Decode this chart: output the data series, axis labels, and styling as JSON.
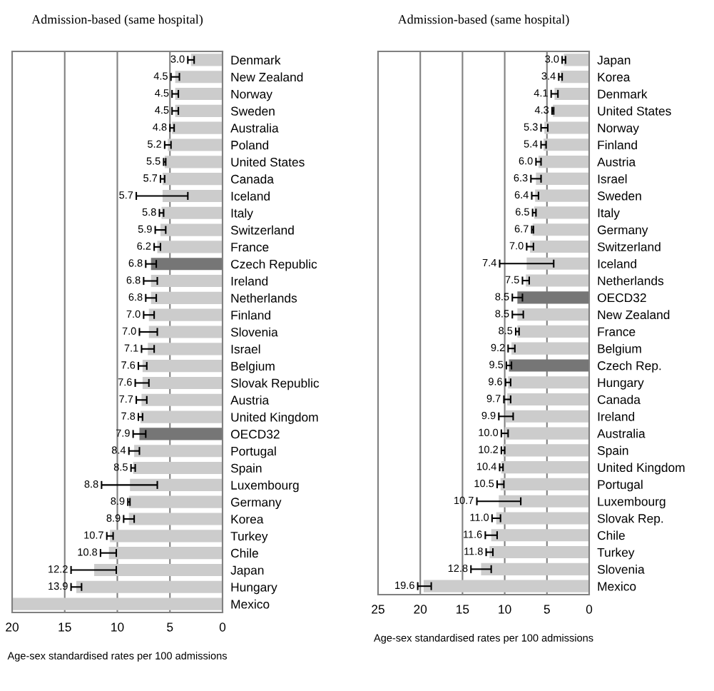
{
  "chart_data": [
    {
      "type": "bar",
      "orientation": "horizontal",
      "title": "Admission-based (same hospital)",
      "xlabel": "Age-sex standardised rates per 100 admissions",
      "categories": [
        "Denmark",
        "New Zealand",
        "Norway",
        "Sweden",
        "Australia",
        "Poland",
        "United States",
        "Canada",
        "Iceland",
        "Italy",
        "Switzerland",
        "France",
        "Czech Republic",
        "Ireland",
        "Netherlands",
        "Finland",
        "Slovenia",
        "Israel",
        "Belgium",
        "Slovak Republic",
        "Austria",
        "United Kingdom",
        "OECD32",
        "Portugal",
        "Spain",
        "Luxembourg",
        "Germany",
        "Korea",
        "Turkey",
        "Chile",
        "Japan",
        "Hungary",
        "Mexico"
      ],
      "values": [
        3.0,
        4.5,
        4.5,
        4.5,
        4.8,
        5.2,
        5.5,
        5.7,
        5.7,
        5.8,
        5.9,
        6.2,
        6.8,
        6.8,
        6.8,
        7.0,
        7.0,
        7.1,
        7.6,
        7.6,
        7.7,
        7.8,
        7.9,
        8.4,
        8.5,
        8.8,
        8.9,
        8.9,
        10.7,
        10.8,
        12.2,
        13.9,
        20
      ],
      "value_labels": [
        "3.0",
        "4.5",
        "4.5",
        "4.5",
        "4.8",
        "5.2",
        "5.5",
        "5.7",
        "5.7",
        "5.8",
        "5.9",
        "6.2",
        "6.8",
        "6.8",
        "6.8",
        "7.0",
        "7.0",
        "7.1",
        "7.6",
        "7.6",
        "7.7",
        "7.8",
        "7.9",
        "8.4",
        "8.5",
        "8.8",
        "8.9",
        "8.9",
        "10.7",
        "10.8",
        "12.2",
        "13.9",
        null
      ],
      "errors": [
        0.3,
        0.4,
        0.3,
        0.3,
        0.2,
        0.3,
        0.1,
        0.2,
        [
          3.3,
          8.2
        ],
        0.2,
        0.5,
        0.3,
        0.5,
        [
          6.2,
          7.5
        ],
        0.5,
        0.5,
        [
          6.2,
          7.9
        ],
        0.6,
        0.4,
        [
          7.0,
          8.3
        ],
        0.5,
        0.2,
        0.6,
        0.5,
        0.2,
        [
          6.2,
          11.5
        ],
        0.1,
        0.5,
        0.3,
        [
          10.1,
          11.6
        ],
        [
          10.1,
          14.4
        ],
        [
          13.4,
          14.4
        ],
        null
      ],
      "colors": [
        "#cccccc",
        "#cccccc",
        "#cccccc",
        "#cccccc",
        "#cccccc",
        "#cccccc",
        "#cccccc",
        "#cccccc",
        "#cccccc",
        "#cccccc",
        "#cccccc",
        "#cccccc",
        "#767676",
        "#cccccc",
        "#cccccc",
        "#cccccc",
        "#cccccc",
        "#cccccc",
        "#cccccc",
        "#cccccc",
        "#cccccc",
        "#cccccc",
        "#767676",
        "#cccccc",
        "#cccccc",
        "#cccccc",
        "#cccccc",
        "#cccccc",
        "#cccccc",
        "#cccccc",
        "#cccccc",
        "#cccccc",
        "#cccccc"
      ],
      "xlim": [
        20,
        0
      ],
      "xticks": [
        20,
        15,
        10,
        5,
        0
      ],
      "grid": "x"
    },
    {
      "type": "bar",
      "orientation": "horizontal",
      "title": "Admission-based (same hospital)",
      "xlabel": "Age-sex standardised rates per 100 admissions",
      "categories": [
        "Japan",
        "Korea",
        "Denmark",
        "United States",
        "Norway",
        "Finland",
        "Austria",
        "Israel",
        "Sweden",
        "Italy",
        "Germany",
        "Switzerland",
        "Iceland",
        "Netherlands",
        "OECD32",
        "New Zealand",
        "France",
        "Belgium",
        "Czech Rep.",
        "Hungary",
        "Canada",
        "Ireland",
        "Australia",
        "Spain",
        "United Kingdom",
        "Portugal",
        "Luxembourg",
        "Slovak Rep.",
        "Chile",
        "Turkey",
        "Slovenia",
        "Mexico"
      ],
      "values": [
        3.0,
        3.4,
        4.1,
        4.3,
        5.3,
        5.4,
        6.0,
        6.3,
        6.4,
        6.5,
        6.7,
        7.0,
        7.4,
        7.5,
        8.5,
        8.5,
        8.5,
        9.2,
        9.5,
        9.6,
        9.7,
        9.9,
        10.0,
        10.2,
        10.4,
        10.5,
        10.7,
        11.0,
        11.6,
        11.8,
        12.8,
        19.6
      ],
      "value_labels": [
        "3.0",
        "3.4",
        "4.1",
        "4.3",
        "5.3",
        "5.4",
        "6.0",
        "6.3",
        "6.4",
        "6.5",
        "6.7",
        "7.0",
        "7.4",
        "7.5",
        "8.5",
        "8.5",
        "8.5",
        "9.2",
        "9.5",
        "9.6",
        "9.7",
        "9.9",
        "10.0",
        "10.2",
        "10.4",
        "10.5",
        "10.7",
        "11.0",
        "11.6",
        "11.8",
        "12.8",
        "19.6"
      ],
      "errors": [
        0.2,
        0.2,
        0.4,
        0.1,
        0.4,
        0.3,
        0.3,
        0.6,
        0.4,
        0.2,
        0.1,
        0.4,
        [
          4.2,
          10.6
        ],
        0.4,
        0.6,
        [
          7.8,
          9.1
        ],
        0.2,
        0.4,
        0.3,
        0.3,
        0.4,
        [
          9.0,
          10.7
        ],
        0.4,
        0.2,
        0.2,
        0.4,
        [
          8.1,
          13.3
        ],
        0.5,
        [
          10.9,
          12.3
        ],
        0.4,
        [
          11.6,
          14.0
        ],
        [
          18.7,
          20.3
        ]
      ],
      "colors": [
        "#cccccc",
        "#cccccc",
        "#cccccc",
        "#cccccc",
        "#cccccc",
        "#cccccc",
        "#cccccc",
        "#cccccc",
        "#cccccc",
        "#cccccc",
        "#cccccc",
        "#cccccc",
        "#cccccc",
        "#cccccc",
        "#767676",
        "#cccccc",
        "#cccccc",
        "#cccccc",
        "#767676",
        "#cccccc",
        "#cccccc",
        "#cccccc",
        "#cccccc",
        "#cccccc",
        "#cccccc",
        "#cccccc",
        "#cccccc",
        "#cccccc",
        "#cccccc",
        "#cccccc",
        "#cccccc",
        "#cccccc"
      ],
      "xlim": [
        25,
        0
      ],
      "xticks": [
        25,
        20,
        15,
        10,
        5,
        0
      ],
      "grid": "x"
    }
  ]
}
